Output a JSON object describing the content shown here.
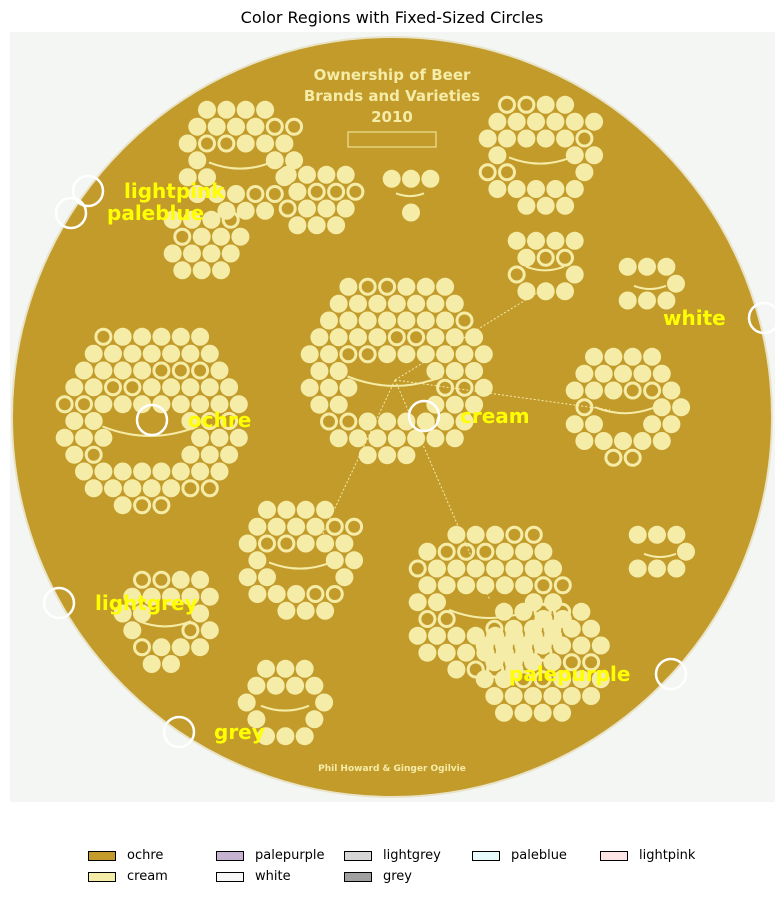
{
  "chart_data": {
    "type": "image-segmentation",
    "title": "Color Regions with Fixed-Sized Circles",
    "poster": {
      "title_lines": [
        "Ownership of Beer",
        "Brands and Varieties",
        "2010"
      ],
      "credit": "Phil Howard & Ginger Ogilvie"
    },
    "colors": {
      "background": "#f4f6f3",
      "poster_fill": "#c29b2b",
      "bubble_fill": "#f5eca7",
      "annotation_text": "#ffff00",
      "marker_stroke": "#ffffff"
    },
    "regions": [
      {
        "name": "ochre",
        "color": "#c29b2b"
      },
      {
        "name": "cream",
        "color": "#f5eca7"
      },
      {
        "name": "palepurple",
        "color": "#c6b3d1"
      },
      {
        "name": "white",
        "color": "#f7f7f7"
      },
      {
        "name": "lightgrey",
        "color": "#d6d6d6"
      },
      {
        "name": "grey",
        "color": "#a0a0a0"
      },
      {
        "name": "paleblue",
        "color": "#e8fbfb"
      },
      {
        "name": "lightpink",
        "color": "#fbe3e6"
      }
    ],
    "annotations": [
      "lightpink",
      "paleblue",
      "white",
      "ochre",
      "cream",
      "lightgrey",
      "palepurple",
      "grey"
    ],
    "legend": [
      "ochre",
      "palepurple",
      "lightgrey",
      "paleblue",
      "lightpink",
      "cream",
      "white",
      "grey"
    ],
    "legend_placement": "bottom"
  }
}
